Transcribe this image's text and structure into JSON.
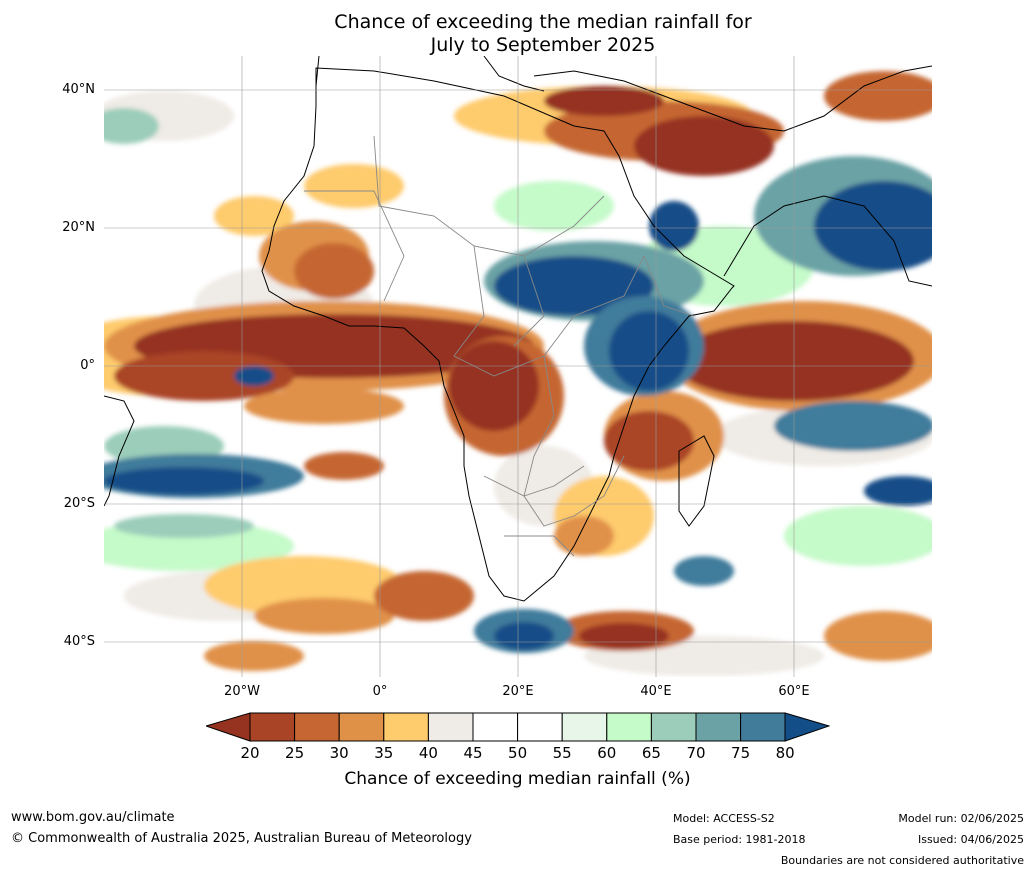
{
  "title": {
    "line1": "Chance of exceeding the median rainfall for",
    "line2": "July to September 2025"
  },
  "map": {
    "lat_labels": [
      "40°N",
      "20°N",
      "0°",
      "20°S",
      "40°S"
    ],
    "lon_labels": [
      "20°W",
      "0°",
      "20°E",
      "40°E",
      "60°E"
    ],
    "extent": {
      "lon": [
        -40,
        80
      ],
      "lat": [
        -45,
        45
      ]
    }
  },
  "legend": {
    "title": "Chance of exceeding median rainfall (%)",
    "ticks": [
      "20",
      "25",
      "30",
      "35",
      "40",
      "45",
      "50",
      "55",
      "60",
      "65",
      "70",
      "75",
      "80"
    ],
    "colors": [
      "#953320",
      "#aa4426",
      "#c56633",
      "#e09148",
      "#fecb6d",
      "#efebe6",
      "#ffffff",
      "#ffffff",
      "#e7f6e8",
      "#c5fac9",
      "#9bcdba",
      "#6ba2a5",
      "#417c9b",
      "#134e88"
    ]
  },
  "footer": {
    "url": "www.bom.gov.au/climate",
    "copyright": "© Commonwealth of Australia 2025, Australian Bureau of Meteorology",
    "model": "Model: ACCESS-S2",
    "base_period": "Base period: 1981-2018",
    "model_run": "Model run: 02/06/2025",
    "issued": "Issued: 04/06/2025",
    "disclaimer": "Boundaries are not considered authoritative"
  }
}
